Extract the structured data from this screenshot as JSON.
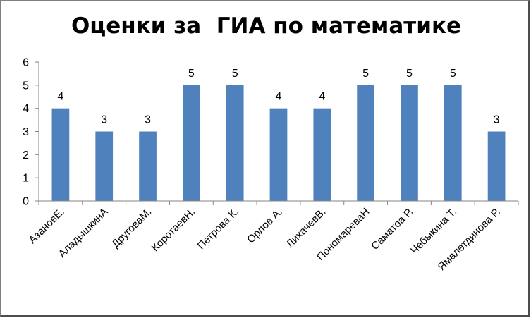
{
  "chart_data": {
    "type": "bar",
    "title": "Оценки за  ГИА по математике",
    "categories": [
      "АзановЕ.",
      "АладышкинА",
      "ДруговаМ.",
      "КоротаевН.",
      "Петрова К.",
      "Орлов А.",
      "ЛихачевВ.",
      "ПономареваН",
      "Саматоа Р.",
      "Чебыкина Т.",
      "Ямалетдинова Р."
    ],
    "values": [
      4,
      3,
      3,
      5,
      5,
      4,
      4,
      5,
      5,
      5,
      3
    ],
    "data_labels": [
      "4",
      "3",
      "3",
      "5",
      "5",
      "4",
      "4",
      "5",
      "5",
      "5",
      "3"
    ],
    "yticks": [
      "0",
      "1",
      "2",
      "3",
      "4",
      "5",
      "6"
    ],
    "ylim": [
      0,
      6
    ],
    "xlabel": "",
    "ylabel": "",
    "grid": false,
    "legend": "none",
    "bar_color": "#4f81bd"
  }
}
